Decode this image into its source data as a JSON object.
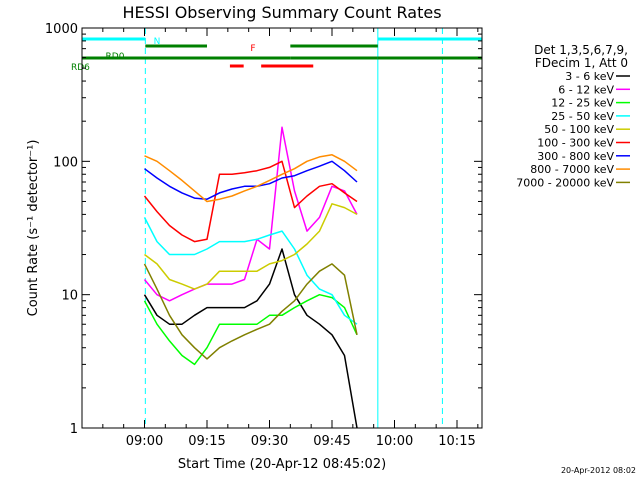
{
  "chart_data": {
    "type": "line",
    "title": "HESSI Observing Summary Count Rates",
    "xlabel": "Start Time (20-Apr-12 08:45:02)",
    "ylabel": "Count Rate (s⁻¹ detector⁻¹)",
    "yscale": "log",
    "ylim": [
      1,
      1000
    ],
    "xlim_minutes": [
      0,
      96
    ],
    "y_ticks": [
      "1",
      "10",
      "100",
      "1000"
    ],
    "x_ticks": [
      {
        "minutes": 15,
        "label": "09:00"
      },
      {
        "minutes": 30,
        "label": "09:15"
      },
      {
        "minutes": 45,
        "label": "09:30"
      },
      {
        "minutes": 60,
        "label": "09:45"
      },
      {
        "minutes": 75,
        "label": "10:00"
      },
      {
        "minutes": 90,
        "label": "10:15"
      }
    ],
    "legend_header": [
      "Det 1,3,5,6,7,9,",
      "FDecim 1, Att 0"
    ],
    "legend_position": "right",
    "timestamp": "20-Apr-2012 08:02",
    "flags": [
      {
        "label": "N",
        "color": "#00ffff",
        "segments": [
          [
            0,
            15.2
          ],
          [
            71,
            96
          ]
        ]
      },
      {
        "label": "RD0",
        "color": "#008000",
        "segments": [
          [
            15.2,
            30
          ],
          [
            50,
            71
          ]
        ]
      },
      {
        "label": "RD6",
        "color": "#008000",
        "segments": [
          [
            0,
            30
          ],
          [
            30,
            50
          ],
          [
            50,
            71
          ],
          [
            71,
            96
          ]
        ]
      },
      {
        "label": "F",
        "color": "#ff0000",
        "segments": [
          [
            35.5,
            38.8
          ],
          [
            43,
            55.5
          ]
        ]
      }
    ],
    "boundaries": {
      "cyan_solid_minutes": [
        0,
        71
      ],
      "cyan_dashed_minutes": [
        15.2,
        86.5
      ]
    },
    "x": [
      0,
      3,
      6,
      9,
      12,
      15,
      18,
      21,
      24,
      27,
      30,
      33,
      36,
      39,
      42,
      45,
      48,
      51,
      54,
      57,
      60,
      63,
      66,
      69,
      72,
      75
    ],
    "series": [
      {
        "name": "3 - 6 keV",
        "color": "#000000",
        "values": [
          null,
          null,
          null,
          null,
          null,
          10,
          7,
          6,
          6,
          7,
          8,
          8,
          8,
          8,
          9,
          12,
          22,
          10,
          7,
          6,
          5,
          3.5,
          1,
          null,
          null,
          null
        ]
      },
      {
        "name": "6 - 12 keV",
        "color": "#ff00ff",
        "values": [
          null,
          null,
          null,
          null,
          null,
          13,
          10,
          9,
          10,
          11,
          12,
          12,
          12,
          13,
          26,
          22,
          180,
          60,
          30,
          38,
          65,
          60,
          40,
          null,
          null,
          null
        ]
      },
      {
        "name": "12 - 25 keV",
        "color": "#00ff00",
        "values": [
          null,
          null,
          null,
          null,
          null,
          9,
          6,
          4.5,
          3.5,
          3,
          4,
          6,
          6,
          6,
          6,
          7,
          7,
          8,
          9,
          10,
          9.5,
          8,
          5,
          null,
          null,
          null
        ]
      },
      {
        "name": "25 - 50 keV",
        "color": "#00ffff",
        "values": [
          null,
          null,
          null,
          null,
          null,
          38,
          25,
          20,
          20,
          20,
          22,
          25,
          25,
          25,
          26,
          28,
          30,
          22,
          14,
          11,
          10,
          7,
          6,
          null,
          null,
          null
        ]
      },
      {
        "name": "50 - 100 keV",
        "color": "#cccc00",
        "values": [
          null,
          null,
          null,
          null,
          null,
          20,
          17,
          13,
          12,
          11,
          12,
          15,
          15,
          15,
          15,
          17,
          18,
          20,
          24,
          30,
          48,
          45,
          40,
          null,
          null,
          null
        ]
      },
      {
        "name": "100 - 300 keV",
        "color": "#ff0000",
        "values": [
          null,
          null,
          null,
          null,
          null,
          55,
          42,
          33,
          28,
          25,
          26,
          80,
          80,
          82,
          85,
          90,
          100,
          45,
          55,
          65,
          68,
          58,
          50,
          null,
          null,
          null
        ]
      },
      {
        "name": "300 - 800 keV",
        "color": "#0000ff",
        "values": [
          null,
          null,
          null,
          null,
          null,
          88,
          75,
          65,
          58,
          53,
          52,
          58,
          62,
          65,
          65,
          68,
          75,
          78,
          85,
          92,
          100,
          85,
          70,
          null,
          null,
          null
        ]
      },
      {
        "name": "800 - 7000 keV",
        "color": "#ff8c00",
        "values": [
          null,
          null,
          null,
          null,
          null,
          110,
          100,
          85,
          72,
          60,
          50,
          52,
          55,
          60,
          65,
          72,
          80,
          88,
          100,
          108,
          112,
          100,
          85,
          null,
          null,
          null
        ]
      },
      {
        "name": "7000 - 20000 keV",
        "color": "#808000",
        "values": [
          null,
          null,
          null,
          null,
          null,
          17,
          11,
          7,
          5,
          4,
          3.3,
          4,
          4.5,
          5,
          5.5,
          6,
          7.5,
          9,
          12,
          15,
          17,
          14,
          5,
          null,
          null,
          null
        ]
      }
    ]
  }
}
